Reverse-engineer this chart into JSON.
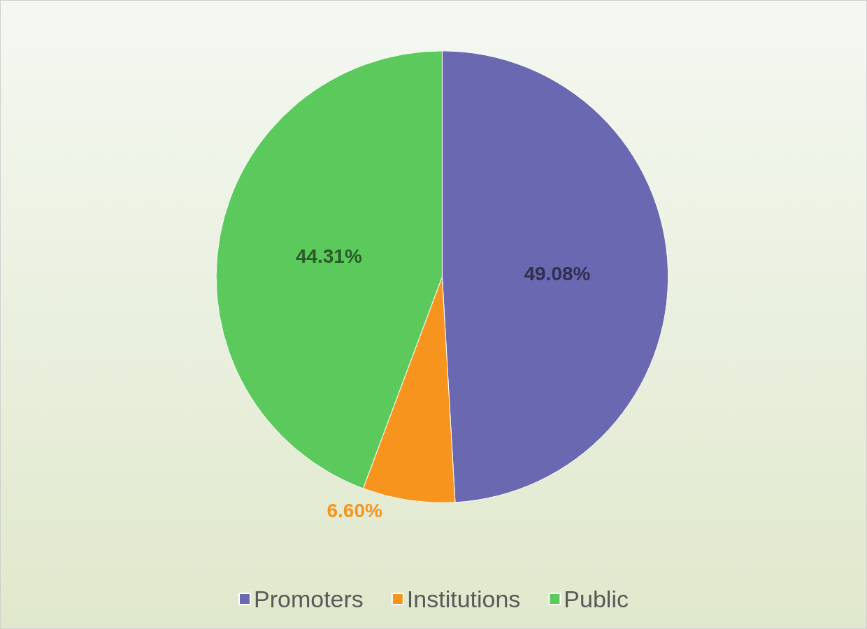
{
  "chart_data": {
    "type": "pie",
    "categories": [
      "Promoters",
      "Institutions",
      "Public"
    ],
    "values": [
      49.08,
      6.6,
      44.31
    ],
    "colors": [
      "#6a68b0",
      "#f7941d",
      "#5cc95c"
    ],
    "value_labels": [
      "49.08%",
      "6.60%",
      "44.31%"
    ],
    "legend": "bottom"
  }
}
